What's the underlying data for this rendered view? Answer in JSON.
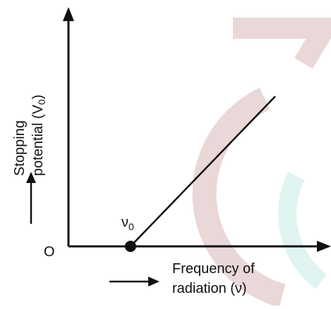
{
  "chart_data": {
    "type": "line",
    "title": "",
    "xlabel_line1": "Frequency of",
    "xlabel_line2": "radiation (ν)",
    "ylabel_line1": "Stopping",
    "ylabel_line2": "potential (V",
    "ylabel_sub": "0",
    "ylabel_close": ")",
    "origin_label": "O",
    "threshold_label": "ν",
    "threshold_sub": "0",
    "x_ticks": [],
    "y_ticks": [],
    "xlim": [
      0,
      10
    ],
    "ylim": [
      0,
      10
    ],
    "grid": false,
    "series": [
      {
        "x": [
          3,
          10
        ],
        "y": [
          0,
          7.2
        ]
      }
    ],
    "threshold_point": {
      "x": 3,
      "y": 0
    },
    "colors": {
      "axis": "#111111",
      "line": "#111111",
      "watermark": "#d9b8b8",
      "watermark_accent": "#c7ece6"
    }
  }
}
